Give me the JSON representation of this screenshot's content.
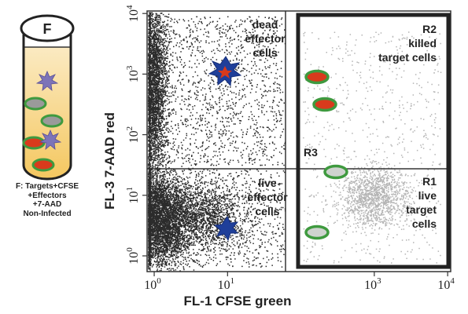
{
  "tube": {
    "letter": "F",
    "caption_lines": [
      "F: Targets+CFSE",
      "+Effectors",
      "+7-AAD",
      "Non-Infected"
    ]
  },
  "axes": {
    "x_label": "FL-1 CFSE green",
    "y_label": "FL-3 7-AAD red",
    "x_base": "10",
    "y_base": "10",
    "x_ticks": [
      {
        "exp": "0",
        "value": 1
      },
      {
        "exp": "1",
        "value": 10
      },
      {
        "exp": "3",
        "value": 1000
      },
      {
        "exp": "4",
        "value": 10000
      }
    ],
    "y_ticks": [
      {
        "exp": "0",
        "value": 1
      },
      {
        "exp": "1",
        "value": 10
      },
      {
        "exp": "2",
        "value": 100
      },
      {
        "exp": "3",
        "value": 1000
      },
      {
        "exp": "4",
        "value": 10000
      }
    ],
    "scale": "log",
    "x_range": [
      0.8,
      11000
    ],
    "y_range": [
      0.55,
      11000
    ]
  },
  "labels": {
    "dead_effector": [
      "dead",
      "effector",
      "cells"
    ],
    "live_effector": [
      "live",
      "effector",
      "cells"
    ],
    "r2": [
      "R2",
      "killed",
      "target cells"
    ],
    "r1": [
      "R1",
      "live",
      "target",
      "cells"
    ],
    "r3": "R3"
  },
  "colors": {
    "dots_dark": "#2b2b2b",
    "dots_grey": "#b4b4b4",
    "star": "#1f3f9a",
    "red": "#d93a1c",
    "green": "#3f9a3f",
    "gate": "#2a2a2a",
    "liquid": "#f6d78e"
  },
  "icons": [
    "star-burst-icon",
    "red-cell-icon",
    "grey-cell-icon",
    "test-tube-icon"
  ]
}
